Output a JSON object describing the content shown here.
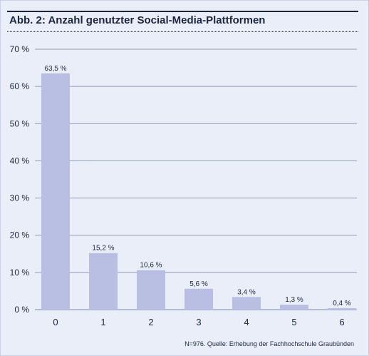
{
  "figure": {
    "title": "Abb. 2: Anzahl genutzter Social-Media-Plattformen",
    "source": "N=976. Quelle: Erhebung der Fachhochschule Graubünden"
  },
  "colors": {
    "background": "#e9eef8",
    "bar": "#b8bfe3",
    "grid": "#8f9ab8",
    "text": "#1b2740"
  },
  "chart_data": {
    "type": "bar",
    "categories": [
      "0",
      "1",
      "2",
      "3",
      "4",
      "5",
      "6"
    ],
    "values": [
      63.5,
      15.2,
      10.6,
      5.6,
      3.4,
      1.3,
      0.4
    ],
    "data_labels": [
      "63,5 %",
      "15,2 %",
      "10,6 %",
      "5,6 %",
      "3,4 %",
      "1,3 %",
      "0,4 %"
    ],
    "ylim": [
      0,
      70
    ],
    "yticks": [
      0,
      10,
      20,
      30,
      40,
      50,
      60,
      70
    ],
    "ytick_labels": [
      "0 %",
      "10 %",
      "20 %",
      "30 %",
      "40 %",
      "50 %",
      "60 %",
      "70 %"
    ],
    "grid": true,
    "xlabel": "",
    "ylabel": ""
  }
}
